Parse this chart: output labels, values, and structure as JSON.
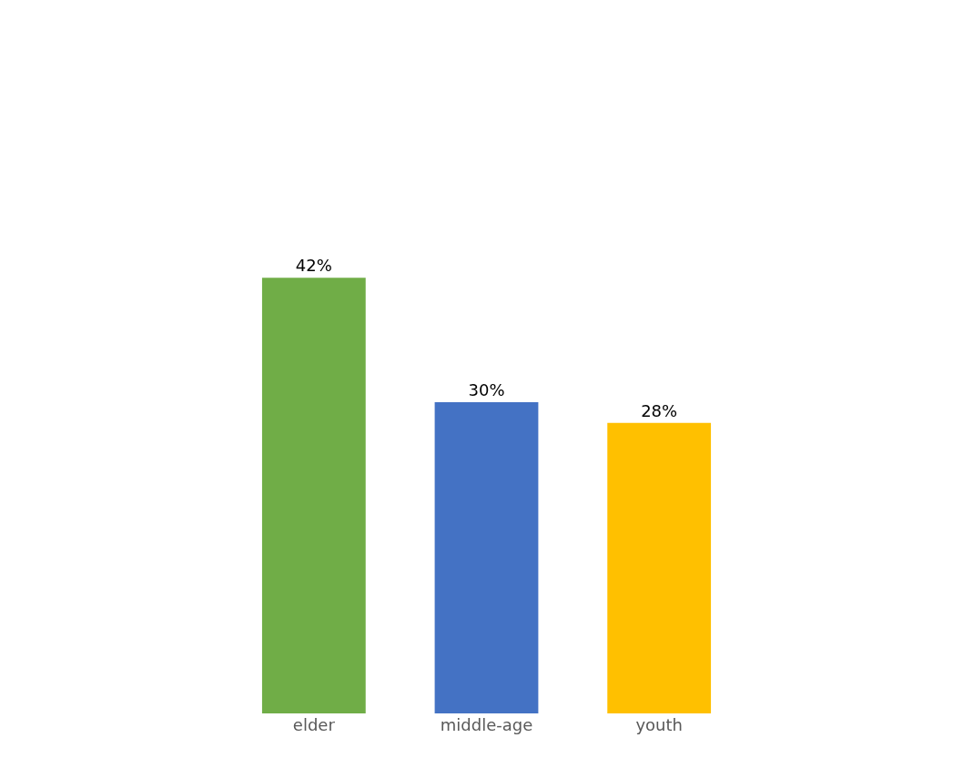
{
  "chart_data": {
    "type": "bar",
    "categories": [
      "elder",
      "middle-age",
      "youth"
    ],
    "values": [
      42,
      30,
      28
    ],
    "colors": [
      "#70ad47",
      "#4472c4",
      "#ffc000"
    ],
    "value_labels": [
      "42%",
      "30%",
      "28%"
    ],
    "tick_labels": "x"
  }
}
